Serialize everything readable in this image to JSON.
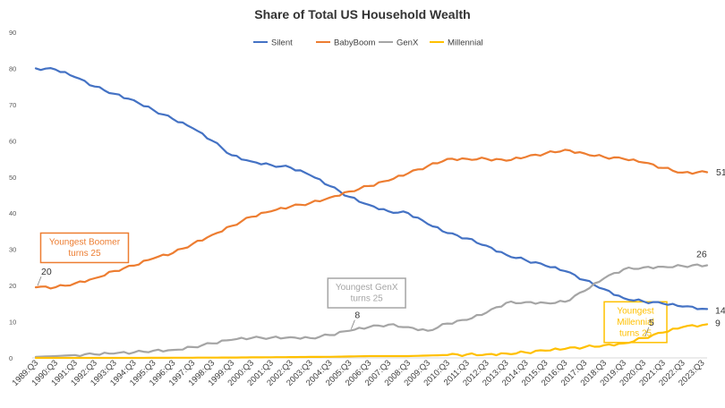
{
  "chart_data": {
    "type": "line",
    "title": "Share of Total US Household Wealth",
    "xlabel": "",
    "ylabel": "",
    "ylim": [
      0,
      90
    ],
    "y_ticks": [
      0,
      10,
      20,
      30,
      40,
      50,
      60,
      70,
      80,
      90
    ],
    "grid": false,
    "legend_position": "top-center",
    "x_tick_labels": [
      "1989:Q3",
      "1990:Q3",
      "1991:Q3",
      "1992:Q3",
      "1993:Q3",
      "1994:Q3",
      "1995:Q3",
      "1996:Q3",
      "1997:Q3",
      "1998:Q3",
      "1999:Q3",
      "2000:Q3",
      "2001:Q3",
      "2002:Q3",
      "2003:Q3",
      "2004:Q3",
      "2005:Q3",
      "2006:Q3",
      "2007:Q3",
      "2008:Q3",
      "2009:Q3",
      "2010:Q3",
      "2011:Q3",
      "2012:Q3",
      "2013:Q3",
      "2014:Q3",
      "2015:Q3",
      "2016:Q3",
      "2017:Q3",
      "2018:Q3",
      "2019:Q3",
      "2020:Q3",
      "2021:Q3",
      "2022:Q3",
      "2023:Q3"
    ],
    "x_start_year": 1989.5,
    "x_end_year": 2023.75,
    "series": [
      {
        "name": "Silent",
        "color": "#4472C4",
        "points": [
          [
            1989.5,
            80
          ],
          [
            1990.5,
            79.7
          ],
          [
            1991.5,
            77.6
          ],
          [
            1992.5,
            75
          ],
          [
            1993.5,
            73
          ],
          [
            1994.5,
            71.2
          ],
          [
            1995.5,
            68.5
          ],
          [
            1996.5,
            66
          ],
          [
            1997.5,
            63.5
          ],
          [
            1998.5,
            60
          ],
          [
            1999.5,
            56
          ],
          [
            2000.5,
            54.3
          ],
          [
            2001.5,
            53.3
          ],
          [
            2002.5,
            52.6
          ],
          [
            2003.5,
            50.5
          ],
          [
            2004.5,
            47.5
          ],
          [
            2005.5,
            44.5
          ],
          [
            2006.5,
            42.3
          ],
          [
            2007.5,
            40.5
          ],
          [
            2008.5,
            40
          ],
          [
            2009.5,
            37
          ],
          [
            2010.5,
            34.5
          ],
          [
            2011.5,
            33
          ],
          [
            2012.5,
            31
          ],
          [
            2013.5,
            28.5
          ],
          [
            2014.5,
            27
          ],
          [
            2015.5,
            25.5
          ],
          [
            2016.5,
            24
          ],
          [
            2017.5,
            21.5
          ],
          [
            2018.5,
            19
          ],
          [
            2019.5,
            16.5
          ],
          [
            2020.5,
            15.6
          ],
          [
            2021.5,
            15
          ],
          [
            2022.5,
            14.2
          ],
          [
            2023.75,
            13.5
          ]
        ]
      },
      {
        "name": "BabyBoom",
        "color": "#ED7D31",
        "points": [
          [
            1989.5,
            19.5
          ],
          [
            1990.5,
            19.5
          ],
          [
            1991.5,
            20.6
          ],
          [
            1992.5,
            22
          ],
          [
            1993.5,
            24
          ],
          [
            1994.5,
            25.5
          ],
          [
            1995.5,
            27.5
          ],
          [
            1996.5,
            29
          ],
          [
            1997.5,
            31.5
          ],
          [
            1998.5,
            34
          ],
          [
            1999.5,
            36.5
          ],
          [
            2000.5,
            39
          ],
          [
            2001.5,
            40.5
          ],
          [
            2002.5,
            41.8
          ],
          [
            2003.5,
            42.8
          ],
          [
            2004.5,
            44.3
          ],
          [
            2005.5,
            46
          ],
          [
            2006.5,
            47.5
          ],
          [
            2007.5,
            49
          ],
          [
            2008.5,
            51
          ],
          [
            2009.5,
            53
          ],
          [
            2010.5,
            55
          ],
          [
            2011.5,
            55
          ],
          [
            2012.5,
            55
          ],
          [
            2013.5,
            54.5
          ],
          [
            2014.5,
            55.5
          ],
          [
            2015.5,
            56.5
          ],
          [
            2016.5,
            57.5
          ],
          [
            2017.5,
            56.5
          ],
          [
            2018.5,
            55.5
          ],
          [
            2019.5,
            55
          ],
          [
            2020.5,
            54
          ],
          [
            2021.5,
            52.5
          ],
          [
            2022.5,
            51.2
          ],
          [
            2023.75,
            51.3
          ]
        ]
      },
      {
        "name": "GenX",
        "color": "#A5A5A5",
        "points": [
          [
            1989.5,
            0.3
          ],
          [
            1990.5,
            0.5
          ],
          [
            1991.5,
            0.8
          ],
          [
            1992.5,
            1
          ],
          [
            1993.5,
            1.2
          ],
          [
            1994.5,
            1.5
          ],
          [
            1995.5,
            2
          ],
          [
            1996.5,
            2.2
          ],
          [
            1997.5,
            3
          ],
          [
            1998.5,
            4
          ],
          [
            1999.5,
            5
          ],
          [
            2000.5,
            5.5
          ],
          [
            2001.5,
            5.6
          ],
          [
            2002.5,
            5.7
          ],
          [
            2003.5,
            5.5
          ],
          [
            2004.5,
            6.3
          ],
          [
            2005.5,
            7.5
          ],
          [
            2006.5,
            8.5
          ],
          [
            2007.5,
            9.2
          ],
          [
            2008.5,
            8.5
          ],
          [
            2009.5,
            7.5
          ],
          [
            2010.5,
            9.5
          ],
          [
            2011.5,
            10.5
          ],
          [
            2012.5,
            12.5
          ],
          [
            2013.5,
            15.2
          ],
          [
            2014.5,
            15.4
          ],
          [
            2015.5,
            15.2
          ],
          [
            2016.5,
            15.5
          ],
          [
            2017.5,
            18.5
          ],
          [
            2018.5,
            22
          ],
          [
            2019.5,
            24.5
          ],
          [
            2020.5,
            25
          ],
          [
            2021.5,
            25.2
          ],
          [
            2022.5,
            25.4
          ],
          [
            2023.75,
            25.6
          ]
        ]
      },
      {
        "name": "Millennial",
        "color": "#FFC000",
        "points": [
          [
            1989.5,
            0
          ],
          [
            1994.5,
            0
          ],
          [
            1999.5,
            0.1
          ],
          [
            2004.5,
            0.3
          ],
          [
            2006.5,
            0.5
          ],
          [
            2008.5,
            0.5
          ],
          [
            2010.5,
            0.8
          ],
          [
            2012.5,
            1
          ],
          [
            2013.5,
            1.2
          ],
          [
            2014.5,
            1.5
          ],
          [
            2015.5,
            2
          ],
          [
            2016.5,
            2.5
          ],
          [
            2017.5,
            3
          ],
          [
            2018.5,
            3.5
          ],
          [
            2019.5,
            4
          ],
          [
            2020.5,
            5.5
          ],
          [
            2021.5,
            7
          ],
          [
            2022.5,
            8.5
          ],
          [
            2023.75,
            9.3
          ]
        ]
      }
    ],
    "end_labels": [
      {
        "series": "Silent",
        "text": "14",
        "x": 2023.75,
        "y": 13.5
      },
      {
        "series": "BabyBoom",
        "text": "51",
        "x": 2023.75,
        "y": 51.3
      },
      {
        "series": "GenX",
        "text": "26",
        "x": 2023.75,
        "y": 25.6
      },
      {
        "series": "Millennial",
        "text": "9",
        "x": 2023.75,
        "y": 9.3
      }
    ],
    "point_labels": [
      {
        "text": "20",
        "x": 1989.5,
        "y": 19.5
      },
      {
        "text": "8",
        "x": 2005.5,
        "y": 7.5
      },
      {
        "text": "5",
        "x": 2020.5,
        "y": 5.5
      }
    ],
    "annotations": [
      {
        "text": [
          "Youngest Boomer",
          "turns 25"
        ],
        "color": "#ED7D31",
        "x": 1989.75,
        "y": 34.5
      },
      {
        "text": [
          "Youngest GenX",
          "turns 25"
        ],
        "color": "#A5A5A5",
        "x": 2004.4,
        "y": 22
      },
      {
        "text": [
          "Youngest",
          "Millennial",
          "turns 25"
        ],
        "color": "#FFC000",
        "x": 2018.5,
        "y": 15.5
      }
    ]
  }
}
